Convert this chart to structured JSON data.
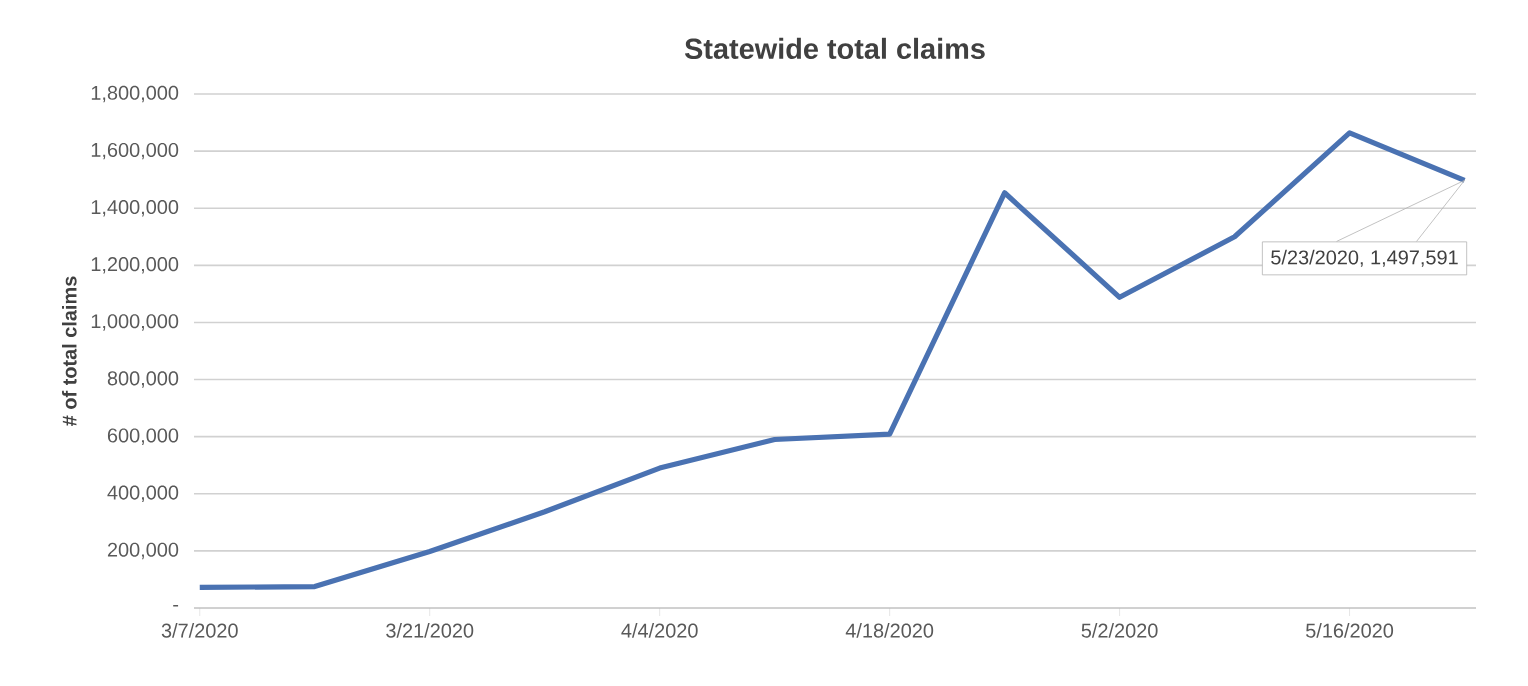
{
  "chart_data": {
    "type": "line",
    "title": "Statewide total claims",
    "ylabel": "# of total claims",
    "categories": [
      "3/7/2020",
      null,
      "3/21/2020",
      null,
      "4/4/2020",
      null,
      "4/18/2020",
      null,
      "5/2/2020",
      null,
      "5/16/2020",
      null
    ],
    "series": [
      {
        "color": "#4a72b2",
        "values": [
          72000,
          75000,
          198000,
          337000,
          490000,
          590000,
          609000,
          1454000,
          1088000,
          1300000,
          1664000,
          1497591
        ]
      }
    ],
    "ylim": [
      0,
      1800000
    ],
    "yticks": [
      {
        "value": 0,
        "label": "-"
      },
      {
        "value": 200000,
        "label": "200,000"
      },
      {
        "value": 400000,
        "label": "400,000"
      },
      {
        "value": 600000,
        "label": "600,000"
      },
      {
        "value": 800000,
        "label": "800,000"
      },
      {
        "value": 1000000,
        "label": "1,000,000"
      },
      {
        "value": 1200000,
        "label": "1,200,000"
      },
      {
        "value": 1400000,
        "label": "1,400,000"
      },
      {
        "value": 1600000,
        "label": "1,600,000"
      },
      {
        "value": 1800000,
        "label": "1,800,000"
      }
    ],
    "grid": "y",
    "annotations": [
      "5/23/2020, 1,497,591"
    ]
  }
}
